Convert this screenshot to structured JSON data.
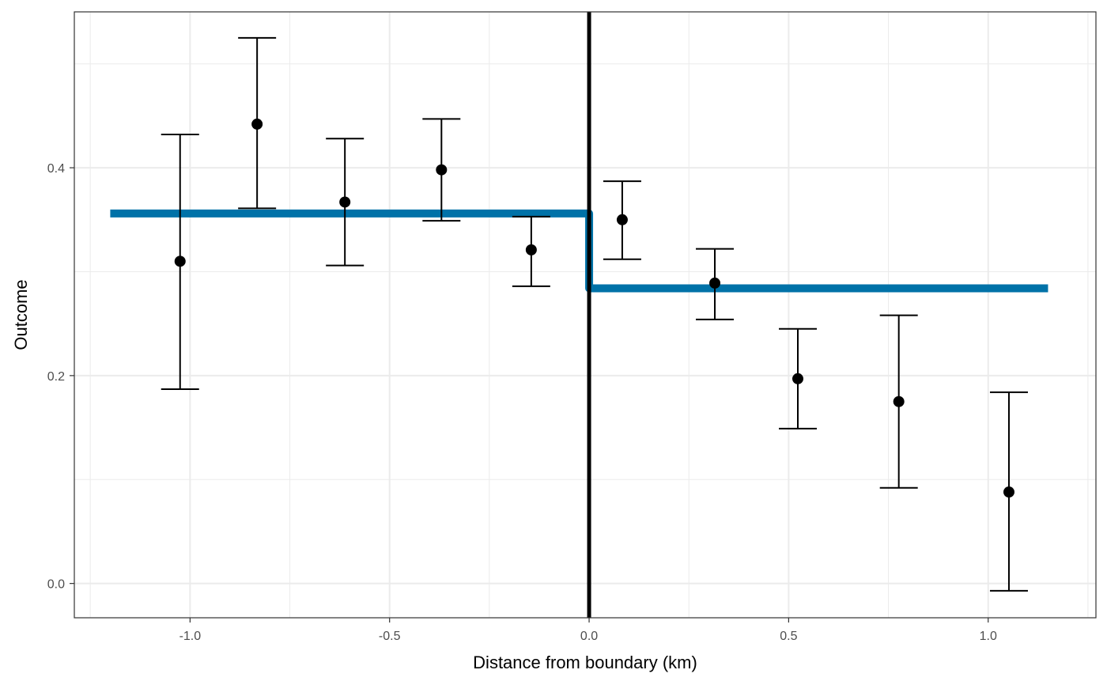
{
  "chart_data": {
    "type": "scatter",
    "xlabel": "Distance from boundary (km)",
    "ylabel": "Outcome",
    "xlim": [
      -1.29,
      1.27
    ],
    "ylim": [
      -0.033,
      0.55
    ],
    "x_ticks": [
      -1.0,
      -0.5,
      0.0,
      0.5,
      1.0
    ],
    "x_tick_labels": [
      "-1.0",
      "-0.5",
      "0.0",
      "0.5",
      "1.0"
    ],
    "y_ticks": [
      0.0,
      0.2,
      0.4
    ],
    "y_tick_labels": [
      "0.0",
      "0.2",
      "0.4"
    ],
    "grid": true,
    "points": [
      {
        "x": -1.025,
        "y": 0.31,
        "lower": 0.187,
        "upper": 0.432
      },
      {
        "x": -0.832,
        "y": 0.442,
        "lower": 0.361,
        "upper": 0.525
      },
      {
        "x": -0.612,
        "y": 0.367,
        "lower": 0.306,
        "upper": 0.428
      },
      {
        "x": -0.37,
        "y": 0.398,
        "lower": 0.349,
        "upper": 0.447
      },
      {
        "x": -0.145,
        "y": 0.321,
        "lower": 0.286,
        "upper": 0.353
      },
      {
        "x": 0.083,
        "y": 0.35,
        "lower": 0.312,
        "upper": 0.387
      },
      {
        "x": 0.315,
        "y": 0.289,
        "lower": 0.254,
        "upper": 0.322
      },
      {
        "x": 0.523,
        "y": 0.197,
        "lower": 0.149,
        "upper": 0.245
      },
      {
        "x": 0.776,
        "y": 0.175,
        "lower": 0.092,
        "upper": 0.258
      },
      {
        "x": 1.052,
        "y": 0.088,
        "lower": -0.007,
        "upper": 0.184
      }
    ],
    "fit_segments": [
      {
        "x": [
          -1.2,
          0.0
        ],
        "y": [
          0.356,
          0.356
        ]
      },
      {
        "x": [
          0.0,
          1.15
        ],
        "y": [
          0.284,
          0.284
        ]
      }
    ],
    "cutoff_x": 0.0,
    "colors": {
      "fit": "#0072a8",
      "points": "#000000",
      "cutoff": "#000000",
      "grid": "#ebebeb",
      "panel_border": "#333333"
    }
  }
}
